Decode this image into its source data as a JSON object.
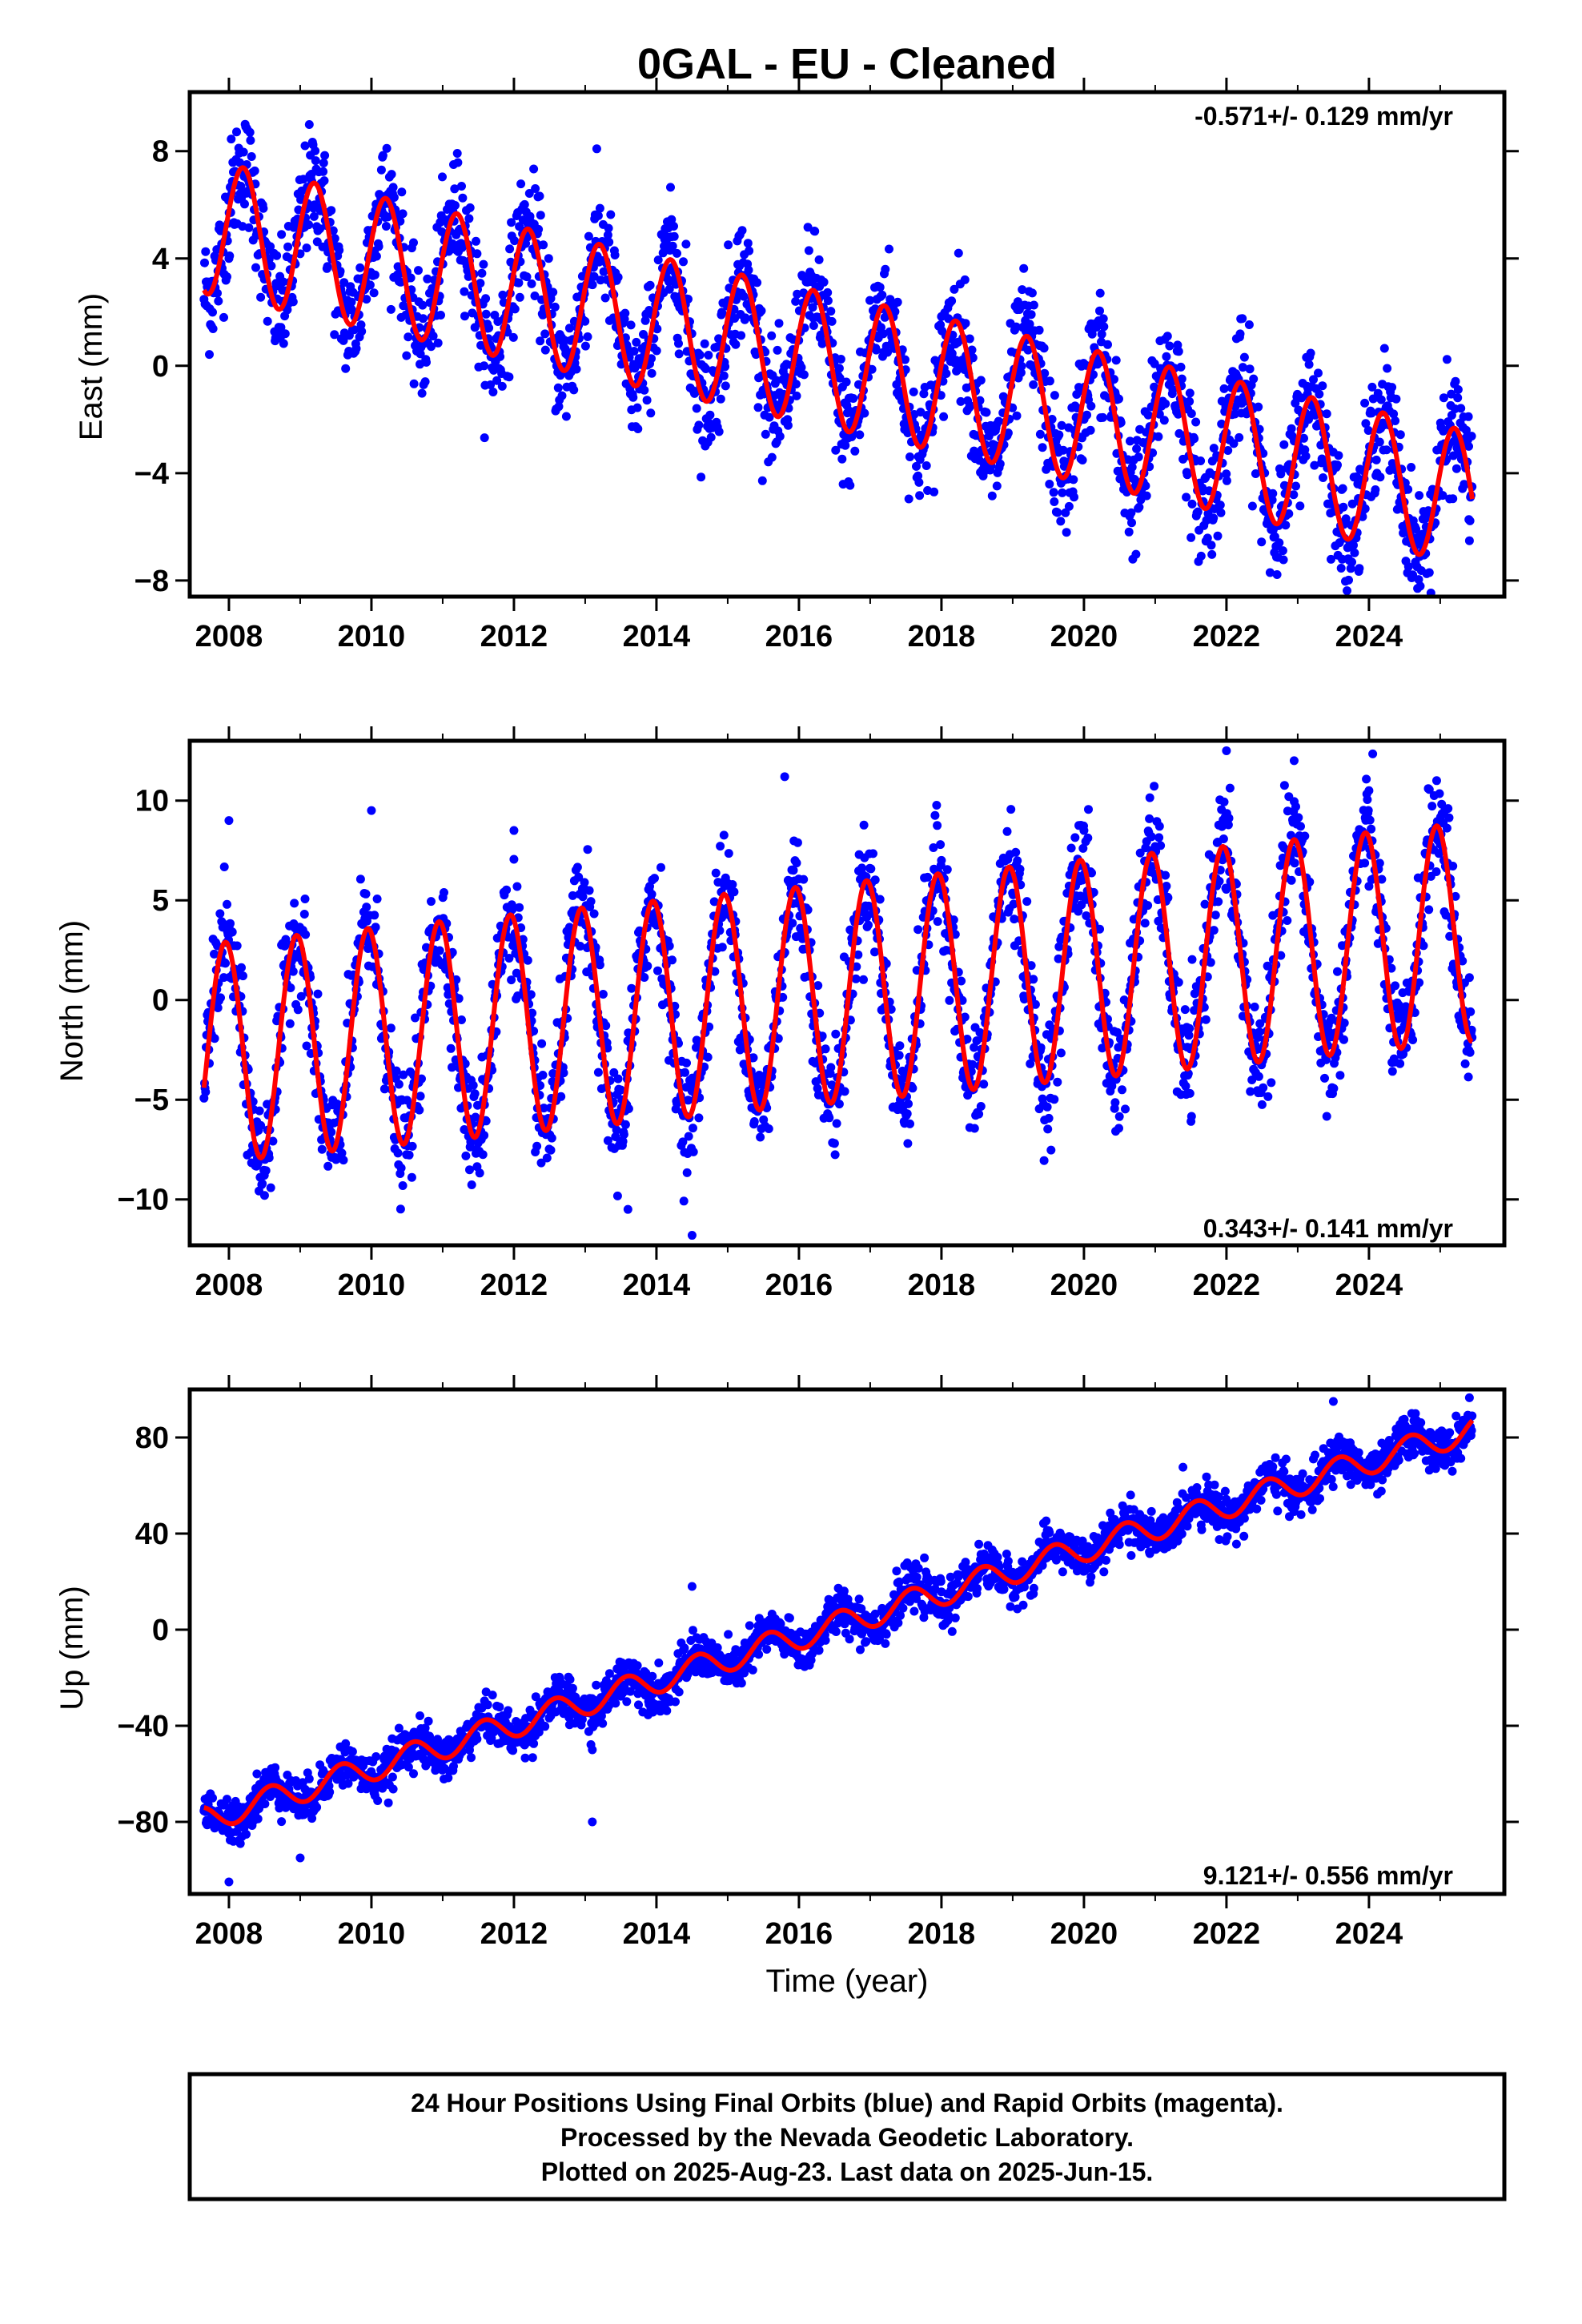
{
  "title": "0GAL  - EU - Cleaned",
  "colors": {
    "final_points": "#0000ff",
    "fit_line": "#ff0000",
    "axis": "#000000"
  },
  "chart_data": [
    {
      "type": "scatter",
      "panel": "east",
      "ylabel": "East (mm)",
      "xlabel": "",
      "rate_text": "-0.571+/- 0.129 mm/yr",
      "rate_position": "top-right",
      "xlim": [
        2007.45,
        2025.9
      ],
      "ylim": [
        -8.6,
        10.2
      ],
      "xticks": [
        2008,
        2010,
        2012,
        2014,
        2016,
        2018,
        2020,
        2022,
        2024
      ],
      "yticks": [
        -8,
        -4,
        0,
        4,
        8
      ],
      "ytick_labels": [
        "−8",
        "−4",
        "0",
        "4",
        "8"
      ],
      "data_start": 2007.65,
      "data_end": 2025.45,
      "model": {
        "intercept": 5.2,
        "ref_year": 2007.65,
        "slope": -0.571,
        "annual_amplitude": 2.5,
        "annual_phase_year": 2008.2,
        "scatter": 1.1
      },
      "series": [
        {
          "name": "Final Orbits (blue)",
          "kind": "points",
          "x": [
            2008.0,
            2008.25,
            2008.8,
            2009.3,
            2010.3,
            2011.3,
            2012.3,
            2014.3,
            2016.3,
            2018.6,
            2020.1,
            2022.0,
            2024.0,
            2025.4
          ],
          "y": [
            4.0,
            7.5,
            2.8,
            6.8,
            5.8,
            5.0,
            4.2,
            3.5,
            1.8,
            -3.2,
            -1.5,
            -2.5,
            -3.5,
            -3.0
          ]
        },
        {
          "name": "Fit",
          "kind": "line",
          "x": [
            2007.65,
            2008.2,
            2008.7,
            2009.2,
            2009.7,
            2010.2,
            2010.7,
            2011.2,
            2011.7,
            2012.2,
            2012.7,
            2013.2,
            2013.7,
            2014.2,
            2014.7,
            2015.2,
            2015.7,
            2016.2,
            2016.7,
            2017.2,
            2017.7,
            2018.2,
            2018.7,
            2019.2,
            2019.7,
            2020.2,
            2020.7,
            2021.2,
            2021.7,
            2022.2,
            2022.7,
            2023.2,
            2023.7,
            2024.2,
            2024.7,
            2025.2,
            2025.45
          ],
          "y": [
            3.4,
            6.8,
            2.7,
            6.2,
            2.2,
            5.7,
            1.6,
            5.1,
            1.0,
            4.5,
            0.4,
            3.9,
            -0.2,
            3.4,
            -0.7,
            2.8,
            -1.3,
            2.2,
            -1.8,
            1.7,
            -2.4,
            1.1,
            -3.0,
            0.6,
            -3.5,
            0.0,
            -4.1,
            -0.6,
            -4.7,
            -1.1,
            -5.3,
            -1.7,
            -5.8,
            -2.2,
            -6.4,
            -2.8,
            -4.0
          ]
        }
      ]
    },
    {
      "type": "scatter",
      "panel": "north",
      "ylabel": "North (mm)",
      "xlabel": "",
      "rate_text": "0.343+/- 0.141 mm/yr",
      "rate_position": "bottom-right",
      "xlim": [
        2007.45,
        2025.9
      ],
      "ylim": [
        -12.3,
        13.0
      ],
      "xticks": [
        2008,
        2010,
        2012,
        2014,
        2016,
        2018,
        2020,
        2022,
        2024
      ],
      "yticks": [
        -10,
        -5,
        0,
        5,
        10
      ],
      "ytick_labels": [
        "−10",
        "−5",
        "0",
        "5",
        "10"
      ],
      "data_start": 2007.65,
      "data_end": 2025.45,
      "model": {
        "intercept": -2.7,
        "ref_year": 2007.65,
        "slope": 0.343,
        "annual_amplitude": 5.5,
        "annual_phase_year": 2007.95,
        "scatter": 1.4
      },
      "series": [
        {
          "name": "Final Orbits (blue)",
          "kind": "points",
          "x": [
            2008.0,
            2008.5,
            2010.0,
            2012.0,
            2013.6,
            2014.5,
            2015.8,
            2018.0,
            2020.0,
            2022.0,
            2022.95,
            2024.0,
            2024.95
          ],
          "y": [
            9.0,
            -9.8,
            9.5,
            8.5,
            -10.5,
            -11.8,
            11.2,
            7.0,
            8.5,
            12.5,
            12.0,
            10.5,
            11.0
          ]
        },
        {
          "name": "Fit",
          "kind": "line",
          "x": [
            2007.65,
            2007.95,
            2008.45,
            2008.95,
            2009.45,
            2009.95,
            2010.45,
            2010.95,
            2011.45,
            2011.95,
            2012.45,
            2012.95,
            2013.45,
            2013.95,
            2014.45,
            2014.95,
            2015.45,
            2015.95,
            2016.45,
            2016.95,
            2017.45,
            2017.95,
            2018.45,
            2018.95,
            2019.45,
            2019.95,
            2020.45,
            2020.95,
            2021.45,
            2021.95,
            2022.45,
            2022.95,
            2023.45,
            2023.95,
            2024.45,
            2024.95,
            2025.45
          ],
          "y": [
            -6.0,
            2.8,
            -8.2,
            3.1,
            -7.8,
            3.5,
            -7.5,
            3.8,
            -7.1,
            4.1,
            -6.8,
            4.5,
            -6.4,
            4.8,
            -6.1,
            5.2,
            -5.7,
            5.5,
            -5.4,
            5.8,
            -5.1,
            6.2,
            -4.7,
            6.5,
            -4.4,
            6.9,
            -4.0,
            7.2,
            -3.7,
            7.5,
            -3.3,
            7.9,
            -3.0,
            8.2,
            -2.6,
            8.6,
            -1.6
          ]
        }
      ]
    },
    {
      "type": "scatter",
      "panel": "up",
      "ylabel": "Up (mm)",
      "xlabel": "Time (year)",
      "rate_text": "9.121+/- 0.556 mm/yr",
      "rate_position": "bottom-right",
      "xlim": [
        2007.45,
        2025.9
      ],
      "ylim": [
        -110,
        100
      ],
      "xticks": [
        2008,
        2010,
        2012,
        2014,
        2016,
        2018,
        2020,
        2022,
        2024
      ],
      "yticks": [
        -80,
        -40,
        0,
        40,
        80
      ],
      "ytick_labels": [
        "−80",
        "−40",
        "0",
        "40",
        "80"
      ],
      "data_start": 2007.65,
      "data_end": 2025.45,
      "model": {
        "intercept": -79,
        "ref_year": 2007.65,
        "slope": 9.121,
        "annual_amplitude": 5.5,
        "annual_phase_year": 2008.58,
        "scatter": 4.5
      },
      "series": [
        {
          "name": "Final Orbits (blue)",
          "kind": "points",
          "x": [
            2007.7,
            2008.0,
            2009.0,
            2013.1,
            2013.1,
            2014.5,
            2016.6,
            2020.7,
            2023.5,
            2024.6,
            2025.4
          ],
          "y": [
            -70,
            -105,
            -95,
            -80,
            -50,
            18,
            12,
            50,
            95,
            90,
            88
          ]
        },
        {
          "name": "Fit",
          "kind": "line",
          "x": [
            2007.65,
            2008.08,
            2008.58,
            2009.08,
            2009.58,
            2010.08,
            2010.58,
            2011.08,
            2011.58,
            2012.08,
            2012.58,
            2013.08,
            2013.58,
            2014.08,
            2014.58,
            2015.08,
            2015.58,
            2016.08,
            2016.58,
            2017.08,
            2017.58,
            2018.08,
            2018.58,
            2019.08,
            2019.58,
            2020.08,
            2020.58,
            2021.08,
            2021.58,
            2022.08,
            2022.58,
            2023.08,
            2023.58,
            2024.08,
            2024.58,
            2025.08,
            2025.45
          ],
          "y": [
            -75,
            -83,
            -64,
            -74,
            -55,
            -65,
            -46,
            -56,
            -37,
            -47,
            -28,
            -38,
            -19,
            -29,
            -10,
            -20,
            -1,
            -11,
            8,
            -2,
            17,
            7,
            26,
            16,
            35,
            25,
            44,
            34,
            53,
            43,
            62,
            52,
            71,
            61,
            80,
            70,
            84
          ]
        }
      ]
    }
  ],
  "caption": {
    "line1": "24 Hour Positions Using Final Orbits (blue) and Rapid Orbits (magenta).",
    "line2": "Processed by the Nevada Geodetic Laboratory.",
    "line3": "Plotted on 2025-Aug-23. Last data on 2025-Jun-15."
  }
}
